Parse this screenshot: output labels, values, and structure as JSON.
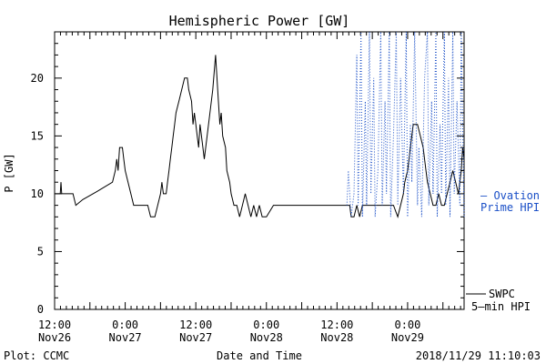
{
  "chart_data": {
    "type": "line",
    "title": "Hemispheric Power [GW]",
    "xlabel": "Date and Time",
    "ylabel": "P [GW]",
    "ylim": [
      0,
      24
    ],
    "yticks": [
      0,
      5,
      10,
      15,
      20
    ],
    "xlim": [
      0,
      2.9
    ],
    "x_unit_note": "days from 2018-11-26 12:00",
    "xticks": [
      {
        "x": 0.0,
        "line1": "12:00",
        "line2": "Nov26"
      },
      {
        "x": 0.5,
        "line1": "0:00",
        "line2": "Nov27"
      },
      {
        "x": 1.0,
        "line1": "12:00",
        "line2": "Nov27"
      },
      {
        "x": 1.5,
        "line1": "0:00",
        "line2": "Nov28"
      },
      {
        "x": 2.0,
        "line1": "12:00",
        "line2": "Nov28"
      },
      {
        "x": 2.5,
        "line1": "0:00",
        "line2": "Nov29"
      }
    ],
    "footer_left": "Plot: CCMC",
    "footer_right": "2018/11/29 11:10:03",
    "series": [
      {
        "name": "SWPC 5-min HPI",
        "color": "#000000",
        "style": "solid",
        "points": [
          [
            0.0,
            10
          ],
          [
            0.04,
            10
          ],
          [
            0.045,
            11
          ],
          [
            0.05,
            10
          ],
          [
            0.13,
            10
          ],
          [
            0.15,
            9
          ],
          [
            0.2,
            9.5
          ],
          [
            0.3,
            10.2
          ],
          [
            0.41,
            11
          ],
          [
            0.43,
            12
          ],
          [
            0.44,
            13
          ],
          [
            0.45,
            12
          ],
          [
            0.46,
            14
          ],
          [
            0.48,
            14
          ],
          [
            0.49,
            13
          ],
          [
            0.5,
            12
          ],
          [
            0.52,
            11
          ],
          [
            0.54,
            10
          ],
          [
            0.56,
            9
          ],
          [
            0.66,
            9
          ],
          [
            0.68,
            8
          ],
          [
            0.71,
            8
          ],
          [
            0.73,
            9
          ],
          [
            0.75,
            10
          ],
          [
            0.76,
            11
          ],
          [
            0.77,
            10
          ],
          [
            0.79,
            10
          ],
          [
            0.8,
            11
          ],
          [
            0.81,
            12
          ],
          [
            0.82,
            13
          ],
          [
            0.83,
            14
          ],
          [
            0.84,
            15
          ],
          [
            0.85,
            16
          ],
          [
            0.86,
            17
          ],
          [
            0.88,
            18
          ],
          [
            0.9,
            19
          ],
          [
            0.92,
            20
          ],
          [
            0.94,
            20
          ],
          [
            0.95,
            19
          ],
          [
            0.97,
            18
          ],
          [
            0.98,
            16
          ],
          [
            0.99,
            17
          ],
          [
            1.0,
            16
          ],
          [
            1.01,
            15
          ],
          [
            1.02,
            14
          ],
          [
            1.03,
            16
          ],
          [
            1.04,
            15
          ],
          [
            1.06,
            13
          ],
          [
            1.08,
            15
          ],
          [
            1.1,
            17
          ],
          [
            1.12,
            19
          ],
          [
            1.14,
            22
          ],
          [
            1.16,
            18
          ],
          [
            1.17,
            16
          ],
          [
            1.18,
            17
          ],
          [
            1.19,
            15
          ],
          [
            1.21,
            14
          ],
          [
            1.22,
            12
          ],
          [
            1.24,
            11
          ],
          [
            1.25,
            10
          ],
          [
            1.27,
            9
          ],
          [
            1.29,
            9
          ],
          [
            1.31,
            8
          ],
          [
            1.33,
            9
          ],
          [
            1.35,
            10
          ],
          [
            1.37,
            9
          ],
          [
            1.39,
            8
          ],
          [
            1.41,
            9
          ],
          [
            1.43,
            8
          ],
          [
            1.45,
            9
          ],
          [
            1.47,
            8
          ],
          [
            1.5,
            8
          ],
          [
            1.55,
            9
          ],
          [
            1.62,
            9
          ],
          [
            1.7,
            9
          ],
          [
            1.78,
            9
          ],
          [
            1.86,
            9
          ],
          [
            1.92,
            9
          ],
          [
            1.95,
            9
          ],
          [
            2.0,
            9
          ],
          [
            2.04,
            9
          ],
          [
            2.07,
            9
          ],
          [
            2.09,
            9
          ],
          [
            2.1,
            8
          ],
          [
            2.12,
            8
          ],
          [
            2.14,
            9
          ],
          [
            2.16,
            8
          ],
          [
            2.18,
            9
          ],
          [
            2.22,
            9
          ],
          [
            2.26,
            9
          ],
          [
            2.3,
            9
          ],
          [
            2.36,
            9
          ],
          [
            2.4,
            9
          ],
          [
            2.43,
            8
          ],
          [
            2.45,
            9
          ],
          [
            2.47,
            10
          ],
          [
            2.48,
            11
          ],
          [
            2.5,
            12
          ],
          [
            2.52,
            14
          ],
          [
            2.54,
            16
          ],
          [
            2.57,
            16
          ],
          [
            2.59,
            15
          ],
          [
            2.61,
            14
          ],
          [
            2.63,
            12
          ],
          [
            2.64,
            11
          ],
          [
            2.66,
            10
          ],
          [
            2.68,
            9
          ],
          [
            2.7,
            9
          ],
          [
            2.72,
            10
          ],
          [
            2.74,
            9
          ],
          [
            2.76,
            9
          ],
          [
            2.78,
            10
          ],
          [
            2.8,
            11
          ],
          [
            2.82,
            12
          ],
          [
            2.84,
            11
          ],
          [
            2.86,
            10
          ],
          [
            2.88,
            12
          ],
          [
            2.89,
            14
          ],
          [
            2.9,
            13
          ]
        ]
      },
      {
        "name": "Ovation Prime HPI",
        "color": "#1a4fc7",
        "style": "dotted",
        "points": [
          [
            2.07,
            9
          ],
          [
            2.08,
            12
          ],
          [
            2.09,
            10
          ],
          [
            2.1,
            8
          ],
          [
            2.12,
            10
          ],
          [
            2.14,
            22
          ],
          [
            2.15,
            9
          ],
          [
            2.17,
            24
          ],
          [
            2.18,
            8
          ],
          [
            2.2,
            18
          ],
          [
            2.21,
            9
          ],
          [
            2.23,
            24
          ],
          [
            2.24,
            10
          ],
          [
            2.26,
            20
          ],
          [
            2.27,
            8
          ],
          [
            2.29,
            12
          ],
          [
            2.31,
            24
          ],
          [
            2.32,
            9
          ],
          [
            2.34,
            18
          ],
          [
            2.35,
            10
          ],
          [
            2.37,
            24
          ],
          [
            2.38,
            8
          ],
          [
            2.4,
            15
          ],
          [
            2.42,
            24
          ],
          [
            2.43,
            9
          ],
          [
            2.45,
            20
          ],
          [
            2.47,
            10
          ],
          [
            2.49,
            24
          ],
          [
            2.5,
            8
          ],
          [
            2.52,
            16
          ],
          [
            2.53,
            11
          ],
          [
            2.55,
            24
          ],
          [
            2.57,
            9
          ],
          [
            2.58,
            14
          ],
          [
            2.6,
            8
          ],
          [
            2.62,
            20
          ],
          [
            2.64,
            24
          ],
          [
            2.65,
            9
          ],
          [
            2.67,
            18
          ],
          [
            2.68,
            10
          ],
          [
            2.7,
            24
          ],
          [
            2.71,
            8
          ],
          [
            2.73,
            16
          ],
          [
            2.74,
            10
          ],
          [
            2.76,
            24
          ],
          [
            2.77,
            9
          ],
          [
            2.79,
            20
          ],
          [
            2.8,
            8
          ],
          [
            2.82,
            24
          ],
          [
            2.83,
            10
          ],
          [
            2.85,
            18
          ],
          [
            2.87,
            9
          ],
          [
            2.88,
            24
          ],
          [
            2.9,
            8
          ]
        ]
      }
    ],
    "legend": {
      "blue_line1": "— Ovation",
      "blue_line2": "Prime HPI",
      "black_line1": "SWPC",
      "black_line2": "5–min HPI",
      "blue_color": "#1a4fc7",
      "black_color": "#000000"
    }
  }
}
